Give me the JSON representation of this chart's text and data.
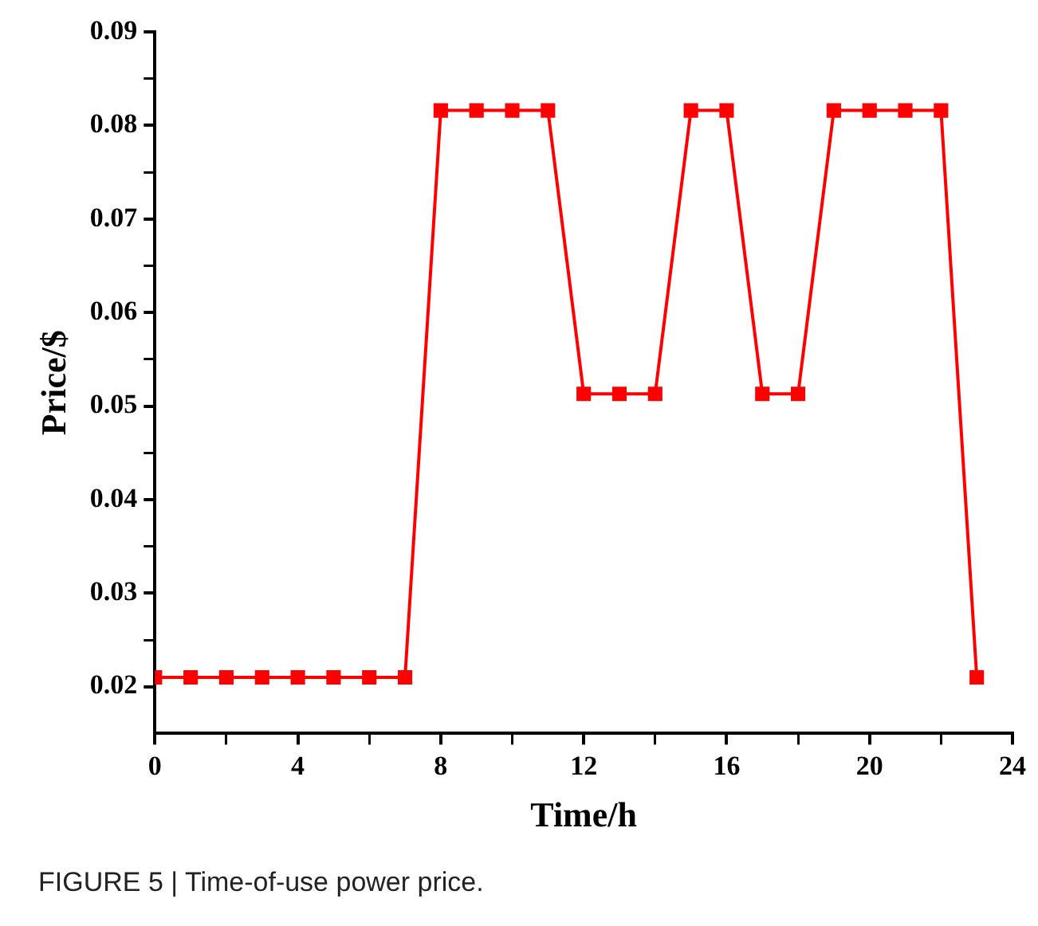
{
  "chart_data": {
    "type": "line",
    "xlabel": "Time/h",
    "ylabel": "Price/$",
    "x": [
      0,
      1,
      2,
      3,
      4,
      5,
      6,
      7,
      8,
      9,
      10,
      11,
      12,
      13,
      14,
      15,
      16,
      17,
      18,
      19,
      20,
      21,
      22,
      23
    ],
    "series": [
      {
        "color": "#ff0000",
        "values": [
          0.021,
          0.021,
          0.021,
          0.021,
          0.021,
          0.021,
          0.021,
          0.021,
          0.0816,
          0.0816,
          0.0816,
          0.0816,
          0.0513,
          0.0513,
          0.0513,
          0.0816,
          0.0816,
          0.0513,
          0.0513,
          0.0816,
          0.0816,
          0.0816,
          0.0816,
          0.021
        ]
      }
    ],
    "xlim": [
      0,
      24
    ],
    "xticks": [
      0,
      4,
      8,
      12,
      16,
      20,
      24
    ],
    "ylim": [
      0.015,
      0.09
    ],
    "yticks": [
      0.02,
      0.03,
      0.04,
      0.05,
      0.06,
      0.07,
      0.08,
      0.09
    ],
    "grid": false,
    "legend": false,
    "marker": "square",
    "line_style": "solid",
    "annotations": [
      "FIGURE 5 | Time-of-use power price."
    ]
  }
}
